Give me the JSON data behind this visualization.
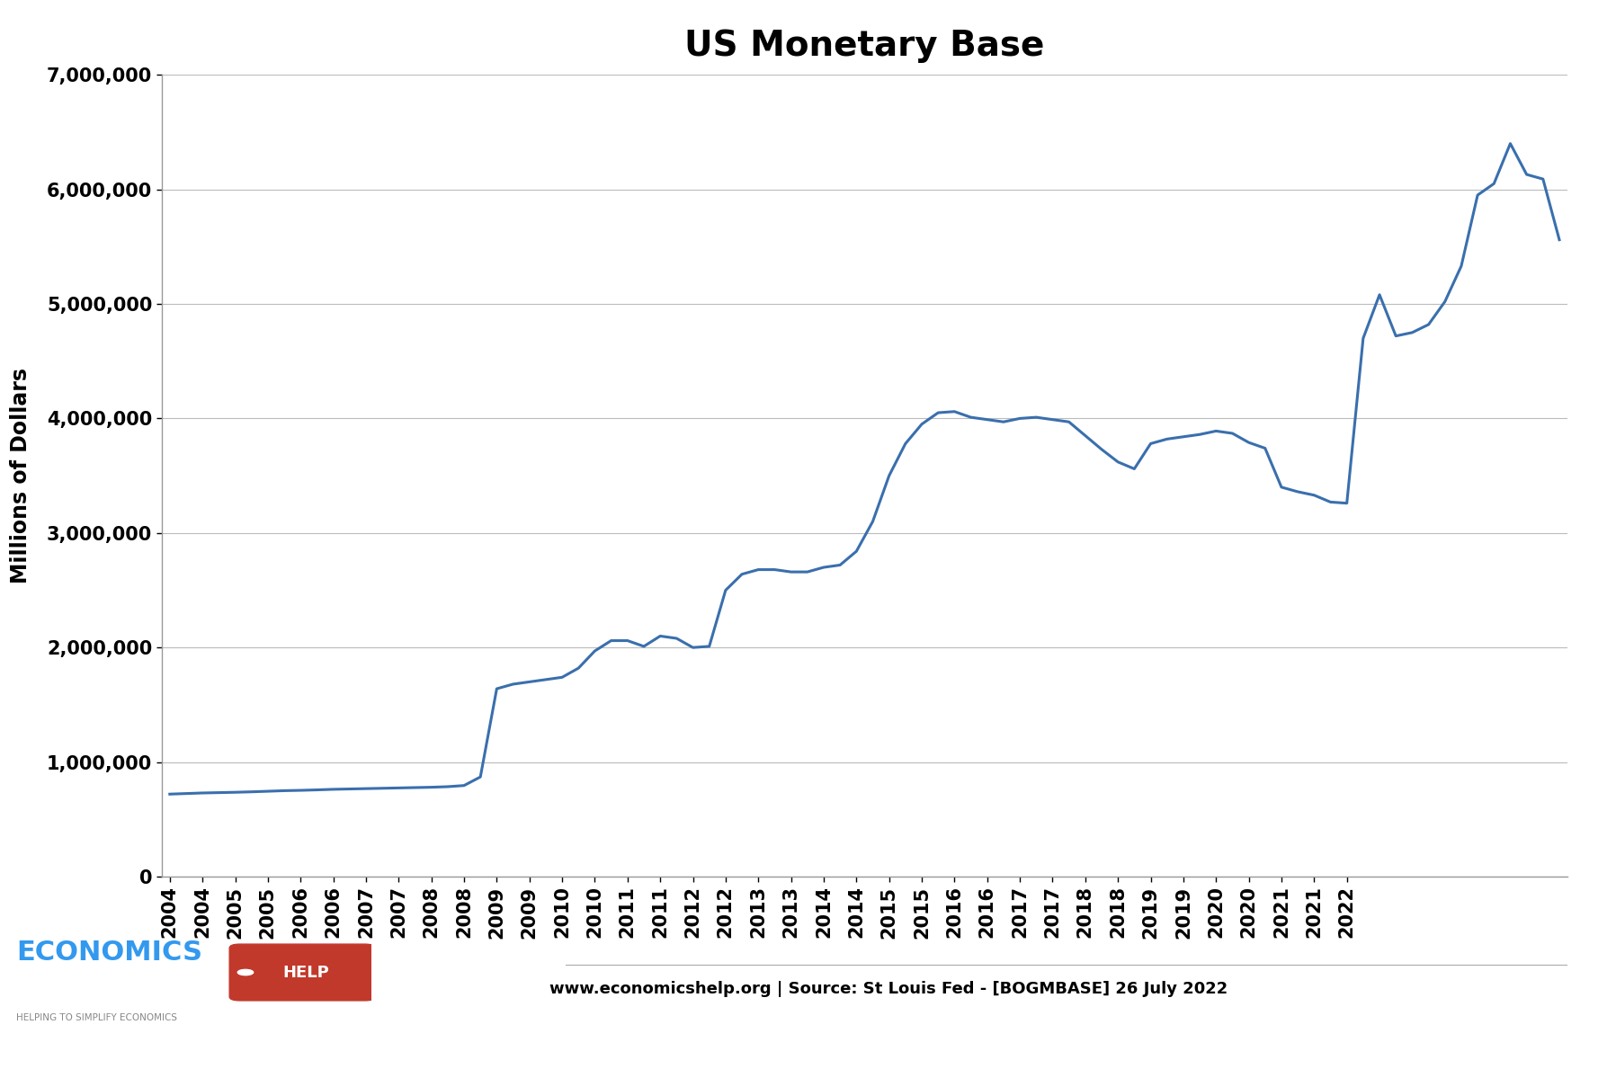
{
  "title": "US Monetary Base",
  "ylabel": "Millions of Dollars",
  "footnote": "www.economicshelp.org | Source: St Louis Fed - [BOGMBASE] 26 July 2022",
  "line_color": "#3a6fad",
  "line_width": 2.2,
  "background_color": "#ffffff",
  "ylim": [
    0,
    7000000
  ],
  "yticks": [
    0,
    1000000,
    2000000,
    3000000,
    4000000,
    5000000,
    6000000,
    7000000
  ],
  "title_fontsize": 28,
  "ylabel_fontsize": 17,
  "tick_fontsize": 15,
  "footnote_fontsize": 13,
  "values": [
    720000,
    725000,
    730000,
    733000,
    736000,
    740000,
    745000,
    750000,
    753000,
    757000,
    762000,
    765000,
    768000,
    771000,
    774000,
    777000,
    780000,
    785000,
    795000,
    870000,
    1640000,
    1680000,
    1700000,
    1720000,
    1740000,
    1820000,
    1970000,
    2060000,
    2060000,
    2010000,
    2100000,
    2080000,
    2000000,
    2010000,
    2500000,
    2640000,
    2680000,
    2680000,
    2660000,
    2660000,
    2700000,
    2720000,
    2840000,
    3100000,
    3500000,
    3780000,
    3950000,
    4050000,
    4060000,
    4010000,
    3990000,
    3970000,
    4000000,
    4010000,
    3990000,
    3970000,
    3850000,
    3730000,
    3620000,
    3560000,
    3780000,
    3820000,
    3840000,
    3860000,
    3890000,
    3870000,
    3790000,
    3740000,
    3400000,
    3360000,
    3330000,
    3270000,
    3260000,
    4700000,
    5080000,
    4720000,
    4750000,
    4820000,
    5020000,
    5330000,
    5950000,
    6050000,
    6400000,
    6130000,
    6090000,
    5560000
  ],
  "xtick_labels": [
    "2004",
    "2004",
    "2005",
    "2005",
    "2006",
    "2006",
    "2007",
    "2007",
    "2008",
    "2008",
    "2009",
    "2009",
    "2010",
    "2010",
    "2011",
    "2011",
    "2012",
    "2012",
    "2013",
    "2013",
    "2014",
    "2014",
    "2015",
    "2015",
    "2016",
    "2016",
    "2017",
    "2017",
    "2018",
    "2018",
    "2019",
    "2019",
    "2020",
    "2020",
    "2021",
    "2021",
    "2022"
  ]
}
